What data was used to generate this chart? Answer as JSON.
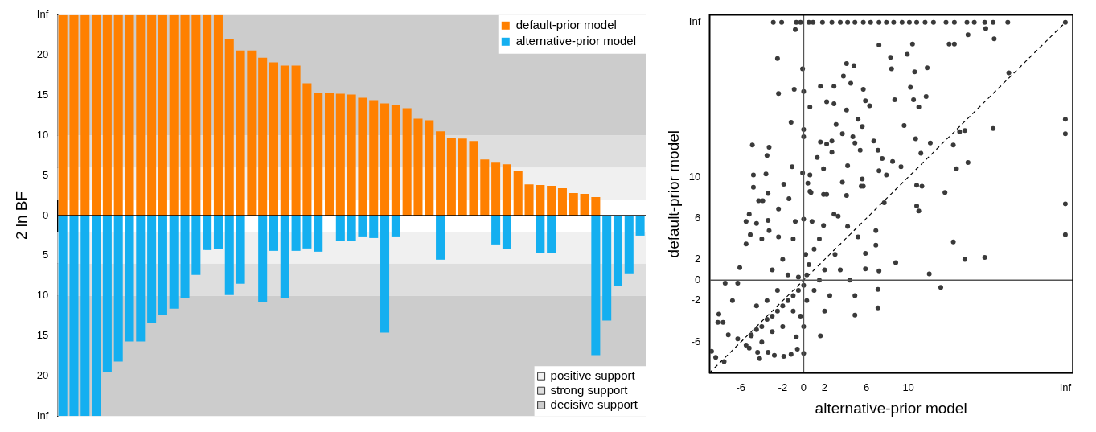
{
  "chart_data": [
    {
      "type": "bar",
      "ylabel": "2 ln BF",
      "categories": [
        null,
        null,
        null,
        null,
        null,
        null,
        null,
        null,
        null,
        null,
        null,
        null,
        null,
        null,
        null,
        null,
        null,
        null,
        null,
        null,
        null,
        null,
        null,
        null,
        null,
        null,
        null,
        null,
        null,
        null,
        null,
        null,
        null,
        null,
        null,
        null,
        null,
        null,
        null,
        null,
        null,
        null,
        null,
        null,
        null,
        null,
        null,
        null,
        null,
        null,
        null,
        null,
        null
      ],
      "series": [
        {
          "name": "default-prior model",
          "color": "#ff8000",
          "values": [
            25,
            25,
            25,
            25,
            25,
            25,
            25,
            25,
            25,
            25,
            25,
            25,
            25,
            25,
            25,
            22.0,
            20.6,
            20.6,
            19.7,
            19.1,
            18.7,
            18.7,
            16.5,
            15.3,
            15.3,
            15.2,
            15.1,
            14.7,
            14.4,
            14.0,
            13.8,
            13.4,
            12.1,
            11.9,
            10.5,
            9.7,
            9.6,
            9.3,
            7.0,
            6.7,
            6.4,
            5.6,
            3.9,
            3.8,
            3.7,
            3.4,
            2.8,
            2.7,
            2.3,
            null,
            null,
            null,
            null
          ]
        },
        {
          "name": "alternative-prior model",
          "color": "#14aff0",
          "values": [
            -25,
            -25,
            -25,
            -25,
            -19.5,
            -18.2,
            -15.7,
            -15.7,
            -13.4,
            -12.4,
            -11.6,
            -10.3,
            -7.4,
            -4.3,
            -4.2,
            -9.9,
            -8.5,
            null,
            -10.8,
            -4.4,
            -10.3,
            -4.4,
            -4.1,
            -4.5,
            null,
            -3.2,
            -3.2,
            -2.6,
            -2.8,
            -14.6,
            -2.6,
            null,
            null,
            null,
            -5.5,
            null,
            null,
            null,
            null,
            -3.6,
            -4.2,
            null,
            null,
            -4.7,
            -4.7,
            null,
            null,
            null,
            -17.4,
            -13.1,
            -8.8,
            -7.2,
            -2.5
          ]
        }
      ],
      "stacked": true,
      "ylim": [
        -25,
        25
      ],
      "yticks": [
        {
          "value": -25,
          "label": "Inf"
        },
        {
          "value": -20,
          "label": "20"
        },
        {
          "value": -15,
          "label": "15"
        },
        {
          "value": -10,
          "label": "10"
        },
        {
          "value": -5,
          "label": "5"
        },
        0,
        5,
        10,
        15,
        20,
        {
          "value": 25,
          "label": "Inf"
        }
      ],
      "bands": [
        {
          "axis": "y",
          "from": 2,
          "to": 6,
          "label": "positive support",
          "color": "#f0f0f0"
        },
        {
          "axis": "y",
          "from": 6,
          "to": 10,
          "label": "strong support",
          "color": "#dedede"
        },
        {
          "axis": "y",
          "from": 10,
          "to": 25,
          "label": "decisive support",
          "color": "#cccccc"
        },
        {
          "axis": "y",
          "from": -6,
          "to": -2,
          "color": "#f0f0f0"
        },
        {
          "axis": "y",
          "from": -10,
          "to": -6,
          "color": "#dedede"
        },
        {
          "axis": "y",
          "from": -25,
          "to": -10,
          "color": "#cccccc"
        }
      ],
      "ref_lines": [
        {
          "axis": "y",
          "value": 0,
          "color": "#000000"
        }
      ],
      "legend": "top right"
    },
    {
      "type": "scatter",
      "xlabel": "alternative-prior model",
      "ylabel": "default-prior model",
      "xlim": [
        -9,
        25.7
      ],
      "ylim": [
        -9,
        25.7
      ],
      "xticks": [
        -6,
        -2,
        0,
        2,
        6,
        10,
        {
          "value": 25,
          "label": "Inf"
        }
      ],
      "yticks": [
        -6,
        -2,
        0,
        2,
        6,
        10,
        {
          "value": 25,
          "label": "Inf"
        }
      ],
      "series": [
        {
          "color": "#3a3a3a",
          "marker": "circle",
          "x": [
            -2.9,
            -2.1,
            -0.7,
            -0.3,
            0.5,
            0.9,
            1.8,
            2.7,
            3.5,
            4.2,
            4.9,
            5.7,
            6.4,
            7.2,
            7.9,
            8.6,
            9.4,
            10.1,
            10.8,
            11.6,
            12.4,
            13.6,
            14.4,
            15.6,
            16.3,
            17.3,
            18.1,
            19.5,
            25,
            -0.8,
            17.4,
            15.7,
            18.2,
            7.2,
            10.4,
            13.9,
            14.4,
            -2.5,
            8.3,
            9.9,
            -0.1,
            8.4,
            4.1,
            4.8,
            10.6,
            11.8,
            19.6,
            -2.4,
            -0.9,
            0.0,
            1.6,
            2.9,
            3.8,
            4.5,
            5.7,
            10.2,
            0.6,
            2.2,
            2.9,
            5.9,
            6.3,
            8.7,
            10.5,
            11.7,
            11.0,
            4.1,
            -1.2,
            3.1,
            5.2,
            5.6,
            9.6,
            18.1,
            25,
            25,
            0.0,
            0.0,
            3.7,
            4.7,
            -4.9,
            -3.3,
            -3.5,
            1.6,
            2.2,
            2.7,
            4.9,
            5.4,
            6.7,
            7.1,
            10.7,
            12.1,
            14.3,
            14.9,
            15.4,
            11.2,
            15.7,
            14.6,
            1.3,
            1.9,
            2.7,
            4.2,
            7.5,
            8.5,
            9.3,
            -4.8,
            -3.6,
            -1.1,
            -0.1,
            0.6,
            3.7,
            5.6,
            7.2,
            7.9,
            -4.8,
            -1.9,
            0.4,
            5.7,
            10.8,
            11.3,
            13.5,
            -3.4,
            1.9,
            0.6,
            -4.3,
            -3.9,
            -1.4,
            -2.4,
            0.7,
            2.2,
            4.1,
            5.5,
            10.8,
            11.0,
            25,
            25,
            14.3,
            15.4,
            17.3,
            8.8,
            12.0,
            13.1,
            7.7,
            6.9,
            6.9,
            7.2,
            7.1,
            7.1,
            4.9,
            1.6,
            -5.5,
            -5.2,
            -5.5,
            -5.1,
            -4.5,
            -3.4,
            -4.0,
            -3.3,
            -2.4,
            -0.8,
            0.0,
            0.8,
            1.9,
            2.9,
            3.3,
            4.2,
            5.2,
            5.9,
            5.9,
            4.4,
            4.9,
            -6.1,
            -6.3,
            -7.5,
            -6.8,
            -8.1,
            -8.2,
            -7.7,
            -8.8,
            -7.6,
            -8.4,
            -7.2,
            -6.3,
            -5.0,
            -5.2,
            -4.4,
            -4.2,
            -3.4,
            -2.8,
            -1.9,
            -1.2,
            -0.6,
            0.0,
            -5.0,
            -4.5,
            -4.0,
            -3.5,
            -3.0,
            -2.5,
            -2.0,
            -1.5,
            -1.0,
            -0.5,
            0.0,
            0.3,
            0.5,
            0.2,
            -0.5,
            -1.0,
            -0.3,
            -2.0,
            -3.0,
            -4.0,
            -1.5,
            -2.5,
            -3.5,
            1.0,
            1.5,
            2.0,
            2.5,
            1.0,
            1.5,
            3.0,
            3.5,
            -4.5,
            -2.0,
            -3.0,
            -1.0,
            0.0,
            0.3,
            -0.7,
            2.0,
            -5.5
          ],
          "values": [
            25,
            25,
            25,
            25,
            25,
            25,
            25,
            25,
            25,
            25,
            25,
            25,
            25,
            25,
            25,
            25,
            25,
            25,
            25,
            25,
            25,
            25,
            25,
            25,
            25,
            25,
            25,
            25,
            25,
            24.3,
            24.4,
            23.8,
            23.4,
            22.8,
            22.9,
            22.9,
            22.9,
            21.5,
            21.6,
            21.9,
            20.5,
            20.5,
            21.0,
            20.8,
            20.2,
            20.6,
            20.1,
            18.1,
            18.5,
            18.3,
            18.8,
            18.8,
            19.8,
            19.1,
            18.5,
            18.7,
            16.8,
            17.3,
            17.1,
            17.4,
            16.9,
            17.5,
            17.5,
            17.8,
            16.8,
            16.5,
            15.3,
            15.1,
            15.6,
            14.9,
            15.0,
            14.7,
            15.6,
            14.2,
            14.6,
            13.9,
            14.2,
            13.9,
            13.1,
            12.9,
            12.1,
            13.4,
            13.2,
            13.5,
            13.3,
            12.6,
            13.5,
            12.6,
            13.7,
            13.3,
            13.1,
            14.4,
            14.5,
            12.3,
            11.4,
            10.8,
            11.9,
            10.8,
            12.4,
            11.1,
            11.8,
            11.5,
            11.0,
            10.2,
            10.3,
            11.0,
            10.4,
            10.2,
            9.5,
            9.8,
            10.6,
            10.2,
            9.0,
            9.3,
            9.4,
            9.1,
            9.2,
            9.1,
            8.5,
            8.4,
            8.3,
            8.6,
            7.7,
            7.7,
            7.9,
            6.9,
            8.5,
            8.3,
            8.2,
            9.1,
            7.2,
            6.7,
            7.4,
            4.4,
            3.7,
            2.0,
            2.2,
            1.7,
            0.6,
            -0.7,
            7.5,
            4.8,
            3.4,
            0.9,
            -0.9,
            -2.7,
            -3.4,
            -5.4,
            5.7,
            6.4,
            3.5,
            4.4,
            5.5,
            5.8,
            4.0,
            4.8,
            4.2,
            5.7,
            5.9,
            5.7,
            5.3,
            6.4,
            6.2,
            5.2,
            4.2,
            2.6,
            1.1,
            0.0,
            -1.5,
            1.2,
            -0.3,
            -0.3,
            -2.0,
            -3.3,
            -4.1,
            -4.1,
            -6.9,
            -7.9,
            -7.5,
            -5.3,
            -5.7,
            -5.4,
            -6.6,
            -7.0,
            -7.6,
            -7.0,
            -7.3,
            -7.4,
            -7.2,
            -6.7,
            -7.1,
            -5.3,
            -4.8,
            -4.5,
            -3.8,
            -3.5,
            -3.0,
            -2.5,
            -2.0,
            -1.5,
            -1.0,
            -0.5,
            0.5,
            1.5,
            2.5,
            0.3,
            -3.0,
            -3.5,
            -4.5,
            -5.0,
            -6.0,
            0.5,
            -1.0,
            -2.0,
            -1.0,
            0.0,
            1.0,
            -1.5,
            3.0,
            4.0,
            2.5,
            1.0,
            -2.5,
            2.0,
            1.0,
            4.0,
            -4.5,
            -2.0,
            -5.5,
            -3.0,
            -6.3
          ]
        },
        {
          "type": "line",
          "color": "#000000",
          "line_style": "dashed",
          "x": [
            -9,
            25
          ],
          "values": [
            -9,
            25
          ]
        }
      ],
      "ref_lines": [
        {
          "axis": "x",
          "value": 0,
          "color": "#555555"
        },
        {
          "axis": "y",
          "value": 0,
          "color": "#555555"
        }
      ]
    }
  ]
}
